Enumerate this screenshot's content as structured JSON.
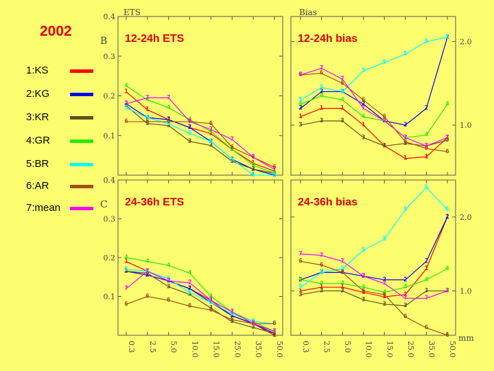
{
  "year": "2002",
  "legend": [
    {
      "label": "1:KS",
      "color": "#ff0000"
    },
    {
      "label": "2:KG",
      "color": "#0000ee"
    },
    {
      "label": "3:KR",
      "color": "#605020"
    },
    {
      "label": "4:GR",
      "color": "#22ee00"
    },
    {
      "label": "5:BR",
      "color": "#00ffff"
    },
    {
      "label": "6:AR",
      "color": "#a05010"
    },
    {
      "label": "7:mean",
      "color": "#ff00ff"
    }
  ],
  "headers": {
    "ets": "ETS",
    "bias": "Bias",
    "unit": "mm"
  },
  "chart_data": [
    {
      "type": "line",
      "title": "12-24h ETS",
      "panel_label": "B",
      "ylim": [
        0,
        0.4
      ],
      "yticks": [
        "0.1",
        "0.2",
        "0.3",
        "0.4"
      ],
      "categories": [
        "0.3",
        "2.5",
        "5.0",
        "10.0",
        "15.0",
        "25.0",
        "35.0",
        "50.0"
      ],
      "series": [
        {
          "name": "1:KS",
          "values": [
            0.21,
            0.165,
            0.14,
            0.12,
            0.105,
            0.065,
            0.03,
            0.01
          ]
        },
        {
          "name": "2:KG",
          "values": [
            0.18,
            0.145,
            0.14,
            0.12,
            0.085,
            0.04,
            0.015,
            0.0
          ]
        },
        {
          "name": "3:KR",
          "values": [
            0.175,
            0.13,
            0.125,
            0.085,
            0.075,
            0.035,
            0.015,
            0.005
          ]
        },
        {
          "name": "4:GR",
          "values": [
            0.225,
            0.19,
            0.17,
            0.14,
            0.11,
            0.065,
            0.025,
            0.005
          ]
        },
        {
          "name": "5:BR",
          "values": [
            0.17,
            0.145,
            0.13,
            0.105,
            0.085,
            0.04,
            0.0,
            0.0
          ]
        },
        {
          "name": "6:AR",
          "values": [
            0.135,
            0.135,
            0.135,
            0.135,
            0.13,
            0.07,
            0.045,
            0.02
          ]
        },
        {
          "name": "7:mean",
          "values": [
            0.18,
            0.195,
            0.195,
            0.135,
            0.115,
            0.09,
            0.045,
            0.015
          ]
        }
      ]
    },
    {
      "type": "line",
      "title": "12-24h bias",
      "ylim": [
        0.4,
        2.3
      ],
      "yticks": [
        "1.0",
        "2.0"
      ],
      "categories": [
        "0.3",
        "2.5",
        "5.0",
        "10.0",
        "15.0",
        "25.0",
        "35.0",
        "50.0"
      ],
      "series": [
        {
          "name": "1:KS",
          "values": [
            1.1,
            1.2,
            1.2,
            1.0,
            0.75,
            0.6,
            0.62,
            0.85
          ]
        },
        {
          "name": "2:KG",
          "values": [
            1.2,
            1.4,
            1.4,
            1.25,
            1.05,
            1.0,
            1.2,
            2.05
          ]
        },
        {
          "name": "3:KR",
          "values": [
            1.0,
            1.05,
            1.05,
            0.85,
            0.75,
            0.78,
            0.75,
            0.82
          ]
        },
        {
          "name": "4:GR",
          "values": [
            1.25,
            1.35,
            1.3,
            1.1,
            1.05,
            0.85,
            0.88,
            1.25
          ]
        },
        {
          "name": "5:BR",
          "values": [
            1.3,
            1.45,
            1.4,
            1.65,
            1.75,
            1.85,
            2.0,
            2.05
          ]
        },
        {
          "name": "6:AR",
          "values": [
            1.6,
            1.62,
            1.5,
            1.3,
            1.1,
            0.8,
            0.72,
            0.68
          ]
        },
        {
          "name": "7:mean",
          "values": [
            1.6,
            1.68,
            1.55,
            1.2,
            1.05,
            0.85,
            0.75,
            0.85
          ]
        }
      ]
    },
    {
      "type": "line",
      "title": "24-36h ETS",
      "panel_label": "C",
      "ylim": [
        0,
        0.4
      ],
      "yticks": [
        "0.1",
        "0.2",
        "0.3",
        "0.4"
      ],
      "categories": [
        "0.3",
        "2.5",
        "5.0",
        "10.0",
        "15.0",
        "25.0",
        "35.0",
        "50.0"
      ],
      "series": [
        {
          "name": "1:KS",
          "values": [
            0.19,
            0.165,
            0.14,
            0.12,
            0.09,
            0.05,
            0.03,
            0.0
          ]
        },
        {
          "name": "2:KG",
          "values": [
            0.165,
            0.155,
            0.14,
            0.12,
            0.085,
            0.05,
            0.03,
            0.005
          ]
        },
        {
          "name": "3:KR",
          "values": [
            0.165,
            0.16,
            0.125,
            0.105,
            0.07,
            0.035,
            0.02,
            0.005
          ]
        },
        {
          "name": "4:GR",
          "values": [
            0.2,
            0.19,
            0.18,
            0.16,
            0.1,
            0.06,
            0.035,
            0.01
          ]
        },
        {
          "name": "5:BR",
          "values": [
            0.17,
            0.165,
            0.145,
            0.11,
            0.085,
            0.055,
            0.035,
            0.03
          ]
        },
        {
          "name": "6:AR",
          "values": [
            0.08,
            0.1,
            0.09,
            0.075,
            0.065,
            0.04,
            0.03,
            0.03
          ]
        },
        {
          "name": "7:mean",
          "values": [
            0.12,
            0.165,
            0.14,
            0.135,
            0.09,
            0.06,
            0.03,
            0.01
          ]
        }
      ]
    },
    {
      "type": "line",
      "title": "24-36h bias",
      "ylim": [
        0.4,
        2.5
      ],
      "yticks": [
        "1.0",
        "2.0"
      ],
      "categories": [
        "0.3",
        "2.5",
        "5.0",
        "10.0",
        "15.0",
        "25.0",
        "35.0",
        "50.0"
      ],
      "series": [
        {
          "name": "1:KS",
          "values": [
            1.0,
            1.05,
            1.05,
            0.98,
            0.92,
            0.95,
            1.3,
            2.0
          ]
        },
        {
          "name": "2:KG",
          "values": [
            1.15,
            1.25,
            1.25,
            1.2,
            1.15,
            1.15,
            1.4,
            2.0
          ]
        },
        {
          "name": "3:KR",
          "values": [
            0.95,
            1.0,
            1.0,
            0.88,
            0.82,
            0.8,
            1.0,
            1.0
          ]
        },
        {
          "name": "4:GR",
          "values": [
            1.15,
            1.1,
            1.1,
            1.05,
            0.98,
            1.05,
            1.15,
            1.3
          ]
        },
        {
          "name": "5:BR",
          "values": [
            1.05,
            1.25,
            1.3,
            1.55,
            1.7,
            2.1,
            2.4,
            2.1
          ]
        },
        {
          "name": "6:AR",
          "values": [
            1.4,
            1.35,
            1.25,
            1.0,
            0.95,
            0.65,
            0.5,
            0.4
          ]
        },
        {
          "name": "7:mean",
          "values": [
            1.5,
            1.48,
            1.4,
            1.2,
            1.1,
            0.9,
            0.9,
            1.0
          ]
        }
      ]
    }
  ]
}
